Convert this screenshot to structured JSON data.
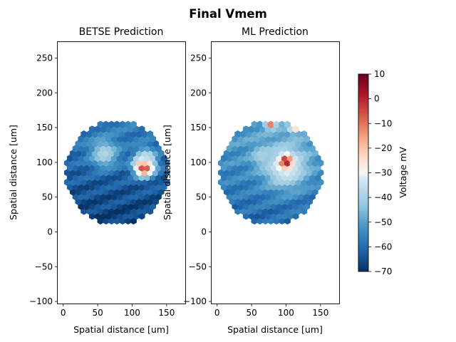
{
  "figure": {
    "title": "Final Vmem"
  },
  "chart_data": [
    {
      "type": "heatmap",
      "title": "BETSE Prediction",
      "xlabel": "Spatial distance [um]",
      "ylabel": "Spatial distance [um]",
      "xlim": [
        -8,
        177
      ],
      "ylim": [
        -103,
        273
      ],
      "xticks": [
        0,
        50,
        100,
        150
      ],
      "yticks": [
        -100,
        -50,
        0,
        50,
        100,
        150,
        200,
        250
      ],
      "xtick_labels": [
        "0",
        "50",
        "100",
        "150"
      ],
      "ytick_labels": [
        "−100",
        "−50",
        "0",
        "50",
        "100",
        "150",
        "200",
        "250"
      ],
      "tissue": {
        "center": [
          78,
          85
        ],
        "radius": 76,
        "base_mV": -62
      },
      "hot_spots_mV": [
        {
          "x": 60,
          "y": 113,
          "value": -38,
          "spread": 14
        },
        {
          "x": 118,
          "y": 95,
          "value": 8,
          "spread": 10
        },
        {
          "x": 120,
          "y": 108,
          "value": -36,
          "spread": 9
        }
      ]
    },
    {
      "type": "heatmap",
      "title": "ML Prediction",
      "xlabel": "Spatial distance [um]",
      "ylabel": "Spatial distance [um]",
      "xlim": [
        -8,
        177
      ],
      "ylim": [
        -103,
        273
      ],
      "xticks": [
        0,
        50,
        100,
        150
      ],
      "yticks": [
        -100,
        -50,
        0,
        50,
        100,
        150,
        200,
        250
      ],
      "xtick_labels": [
        "0",
        "50",
        "100",
        "150"
      ],
      "ytick_labels": [
        "−100",
        "−50",
        "0",
        "50",
        "100",
        "150",
        "200",
        "250"
      ],
      "tissue": {
        "center": [
          78,
          85
        ],
        "radius": 76,
        "base_mV": -55
      },
      "hot_spots_mV": [
        {
          "x": 100,
          "y": 95,
          "value": -30,
          "spread": 22
        },
        {
          "x": 100,
          "y": 102,
          "value": 5,
          "spread": 6
        },
        {
          "x": 78,
          "y": 158,
          "value": 0,
          "spread": 5
        },
        {
          "x": 112,
          "y": 150,
          "value": -20,
          "spread": 5
        },
        {
          "x": 65,
          "y": 110,
          "value": -40,
          "spread": 10
        }
      ]
    }
  ],
  "colorbar": {
    "label": "Voltage mV",
    "range": [
      -70,
      10
    ],
    "ticks": [
      10,
      0,
      -10,
      -20,
      -30,
      -40,
      -50,
      -60,
      -70
    ],
    "tick_labels": [
      "10",
      "0",
      "−10",
      "−20",
      "−30",
      "−40",
      "−50",
      "−60",
      "−70"
    ],
    "colormap": "RdBu_r",
    "colors": [
      "#053061",
      "#2166ac",
      "#4393c3",
      "#92c5de",
      "#f7f7f7",
      "#fddbc7",
      "#f4a582",
      "#d6604d",
      "#b2182b",
      "#67001f"
    ]
  }
}
